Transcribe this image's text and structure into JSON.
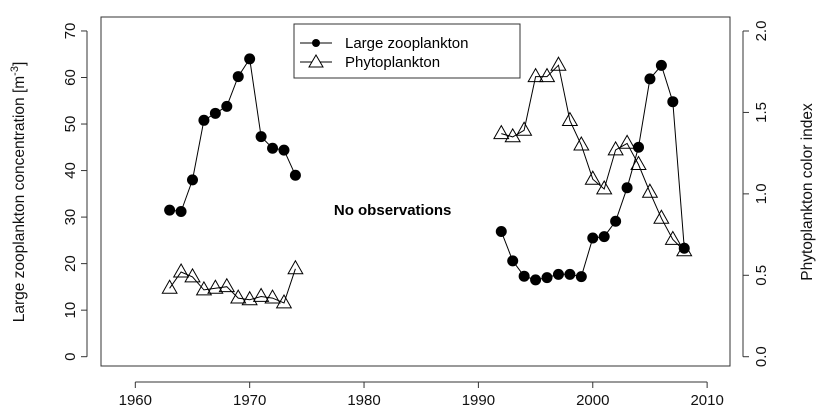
{
  "chart_data": {
    "type": "line",
    "title": "",
    "xlabel": "",
    "ylabel": "Large zooplankton concentration [m",
    "ylabel_superscript": "-3",
    "ylabel_close": "]",
    "y2label": "Phytoplankton color index",
    "xlim": [
      1957,
      2012
    ],
    "ylim": [
      -2,
      73
    ],
    "y2lim": [
      -0.057,
      2.086
    ],
    "x_ticks": [
      1960,
      1970,
      1980,
      1990,
      2000,
      2010
    ],
    "x_tick_labels": [
      "1960",
      "1970",
      "1980",
      "1990",
      "2000",
      "2010"
    ],
    "y_ticks": [
      0,
      10,
      20,
      30,
      40,
      50,
      60,
      70
    ],
    "y_tick_labels": [
      "0",
      "10",
      "20",
      "30",
      "40",
      "50",
      "60",
      "70"
    ],
    "y2_ticks": [
      0.0,
      0.5,
      1.0,
      1.5,
      2.0
    ],
    "y2_tick_labels": [
      "0.0",
      "0.5",
      "1.0",
      "1.5",
      "2.0"
    ],
    "grid": false,
    "legend_position": "top-center",
    "annotation": {
      "text": "No observations",
      "x": 1982.5,
      "y": 30
    },
    "series": [
      {
        "name": "Large zooplankton",
        "axis": "left",
        "marker": "filled-circle",
        "segments": [
          {
            "x": [
              1963,
              1964,
              1965,
              1966,
              1967,
              1968,
              1969,
              1970,
              1971,
              1972,
              1973,
              1974
            ],
            "y": [
              31.5,
              31.2,
              38.0,
              50.8,
              52.3,
              53.8,
              60.2,
              64.0,
              47.3,
              44.8,
              44.4,
              39.0
            ]
          },
          {
            "x": [
              1992,
              1993,
              1994,
              1995,
              1996,
              1997,
              1998,
              1999,
              2000,
              2001,
              2002,
              2003,
              2004,
              2005,
              2006,
              2007,
              2008
            ],
            "y": [
              26.9,
              20.6,
              17.3,
              16.5,
              17.0,
              17.7,
              17.7,
              17.2,
              25.5,
              25.8,
              29.1,
              36.3,
              45.0,
              59.7,
              62.6,
              54.8,
              23.3
            ]
          }
        ]
      },
      {
        "name": "Phytoplankton",
        "axis": "right",
        "marker": "open-triangle",
        "segments": [
          {
            "x": [
              1963,
              1964,
              1965,
              1966,
              1967,
              1968,
              1969,
              1970,
              1971,
              1972,
              1973,
              1974
            ],
            "y": [
              0.42,
              0.52,
              0.49,
              0.41,
              0.42,
              0.43,
              0.36,
              0.35,
              0.37,
              0.36,
              0.33,
              0.54
            ]
          },
          {
            "x": [
              1992,
              1993,
              1994,
              1995,
              1996,
              1997,
              1998,
              1999,
              2000,
              2001,
              2002,
              2003,
              2004,
              2005,
              2006,
              2007,
              2008
            ],
            "y": [
              1.37,
              1.35,
              1.39,
              1.72,
              1.72,
              1.79,
              1.45,
              1.3,
              1.09,
              1.03,
              1.27,
              1.31,
              1.18,
              1.01,
              0.85,
              0.72,
              0.65
            ]
          }
        ]
      }
    ],
    "colors": {
      "line": "#000000",
      "marker_fill": "#000000",
      "axis": "#333333"
    }
  }
}
